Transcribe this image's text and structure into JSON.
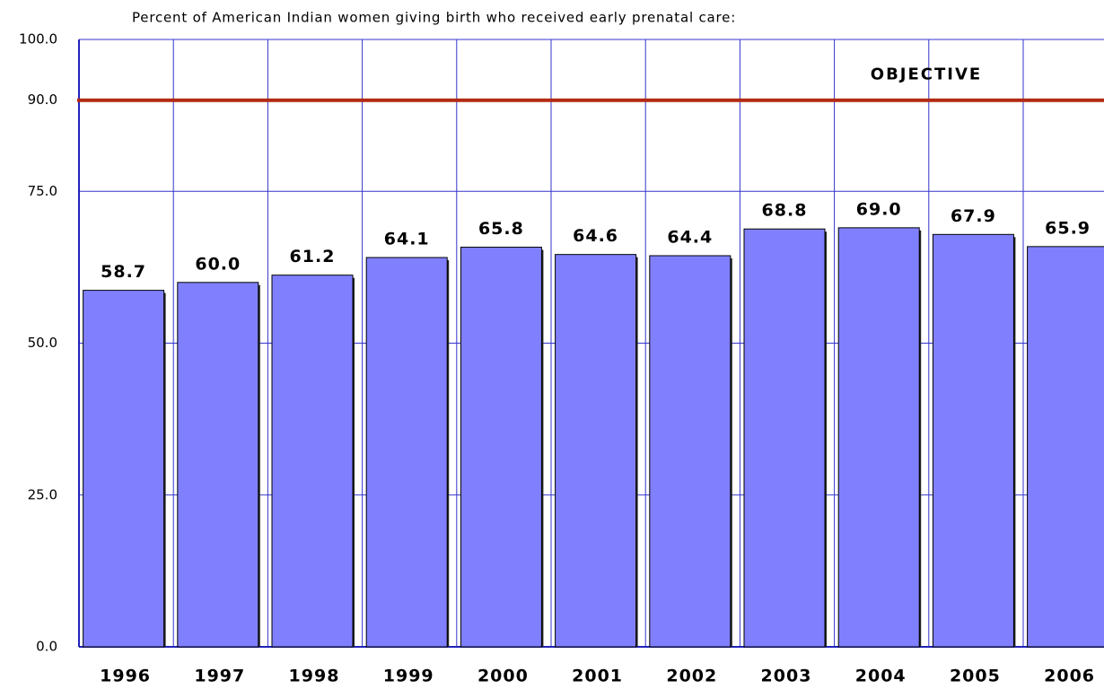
{
  "chart_data": {
    "type": "bar",
    "title": "Percent of American Indian women giving birth who received early prenatal care:",
    "categories": [
      "1996",
      "1997",
      "1998",
      "1999",
      "2000",
      "2001",
      "2002",
      "2003",
      "2004",
      "2005",
      "2006"
    ],
    "values": [
      58.7,
      60,
      61.2,
      64.1,
      65.8,
      64.6,
      64.4,
      68.8,
      69,
      67.9,
      65.9
    ],
    "value_labels": [
      "58.7",
      "60.0",
      "61.2",
      "64.1",
      "65.8",
      "64.6",
      "64.4",
      "68.8",
      "69.0",
      "67.9",
      "65.9"
    ],
    "color": "#8080ff",
    "ylim": [
      0,
      100
    ],
    "yticks": [
      {
        "value": 0,
        "label": "0.0"
      },
      {
        "value": 25,
        "label": "25.0"
      },
      {
        "value": 50,
        "label": "50.0"
      },
      {
        "value": 75,
        "label": "75.0"
      },
      {
        "value": 90,
        "label": "90.0"
      },
      {
        "value": 100,
        "label": "100.0"
      }
    ],
    "grid": true,
    "objective": {
      "value": 90,
      "label": "OBJECTIVE",
      "color": "#b22a12"
    }
  }
}
